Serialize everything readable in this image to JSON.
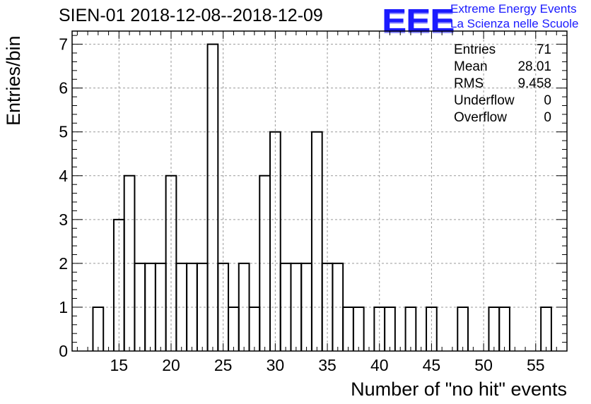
{
  "title": "SIEN-01 2018-12-08--2018-12-09",
  "logo": {
    "text": "EEE",
    "line1": "Extreme Energy Events",
    "line2": "La Scienza nelle Scuole",
    "color": "#1a1aff"
  },
  "stats": [
    {
      "label": "Entries",
      "value": "71"
    },
    {
      "label": "Mean",
      "value": "28.01"
    },
    {
      "label": "RMS",
      "value": "9.458"
    },
    {
      "label": "Underflow",
      "value": "0"
    },
    {
      "label": "Overflow",
      "value": "0"
    }
  ],
  "chart_data": {
    "type": "bar",
    "xlabel": "Number of \"no hit\" events",
    "ylabel": "Entries/bin",
    "xlim": [
      10.5,
      58
    ],
    "ylim": [
      0,
      7.3
    ],
    "bin_width": 1,
    "xticks": [
      15,
      20,
      25,
      30,
      35,
      40,
      45,
      50,
      55
    ],
    "yticks": [
      0,
      1,
      2,
      3,
      4,
      5,
      6,
      7
    ],
    "grid": true,
    "legend": "top-right",
    "bins": [
      {
        "x": 13,
        "count": 1
      },
      {
        "x": 15,
        "count": 3
      },
      {
        "x": 16,
        "count": 4
      },
      {
        "x": 17,
        "count": 2
      },
      {
        "x": 18,
        "count": 2
      },
      {
        "x": 19,
        "count": 2
      },
      {
        "x": 20,
        "count": 4
      },
      {
        "x": 21,
        "count": 2
      },
      {
        "x": 22,
        "count": 2
      },
      {
        "x": 23,
        "count": 2
      },
      {
        "x": 24,
        "count": 7
      },
      {
        "x": 25,
        "count": 2
      },
      {
        "x": 26,
        "count": 1
      },
      {
        "x": 27,
        "count": 2
      },
      {
        "x": 28,
        "count": 1
      },
      {
        "x": 29,
        "count": 4
      },
      {
        "x": 30,
        "count": 5
      },
      {
        "x": 31,
        "count": 2
      },
      {
        "x": 32,
        "count": 2
      },
      {
        "x": 33,
        "count": 2
      },
      {
        "x": 34,
        "count": 5
      },
      {
        "x": 35,
        "count": 2
      },
      {
        "x": 36,
        "count": 2
      },
      {
        "x": 37,
        "count": 1
      },
      {
        "x": 38,
        "count": 1
      },
      {
        "x": 40,
        "count": 1
      },
      {
        "x": 41,
        "count": 1
      },
      {
        "x": 43,
        "count": 1
      },
      {
        "x": 45,
        "count": 1
      },
      {
        "x": 48,
        "count": 1
      },
      {
        "x": 51,
        "count": 1
      },
      {
        "x": 52,
        "count": 1
      },
      {
        "x": 56,
        "count": 1
      }
    ]
  }
}
